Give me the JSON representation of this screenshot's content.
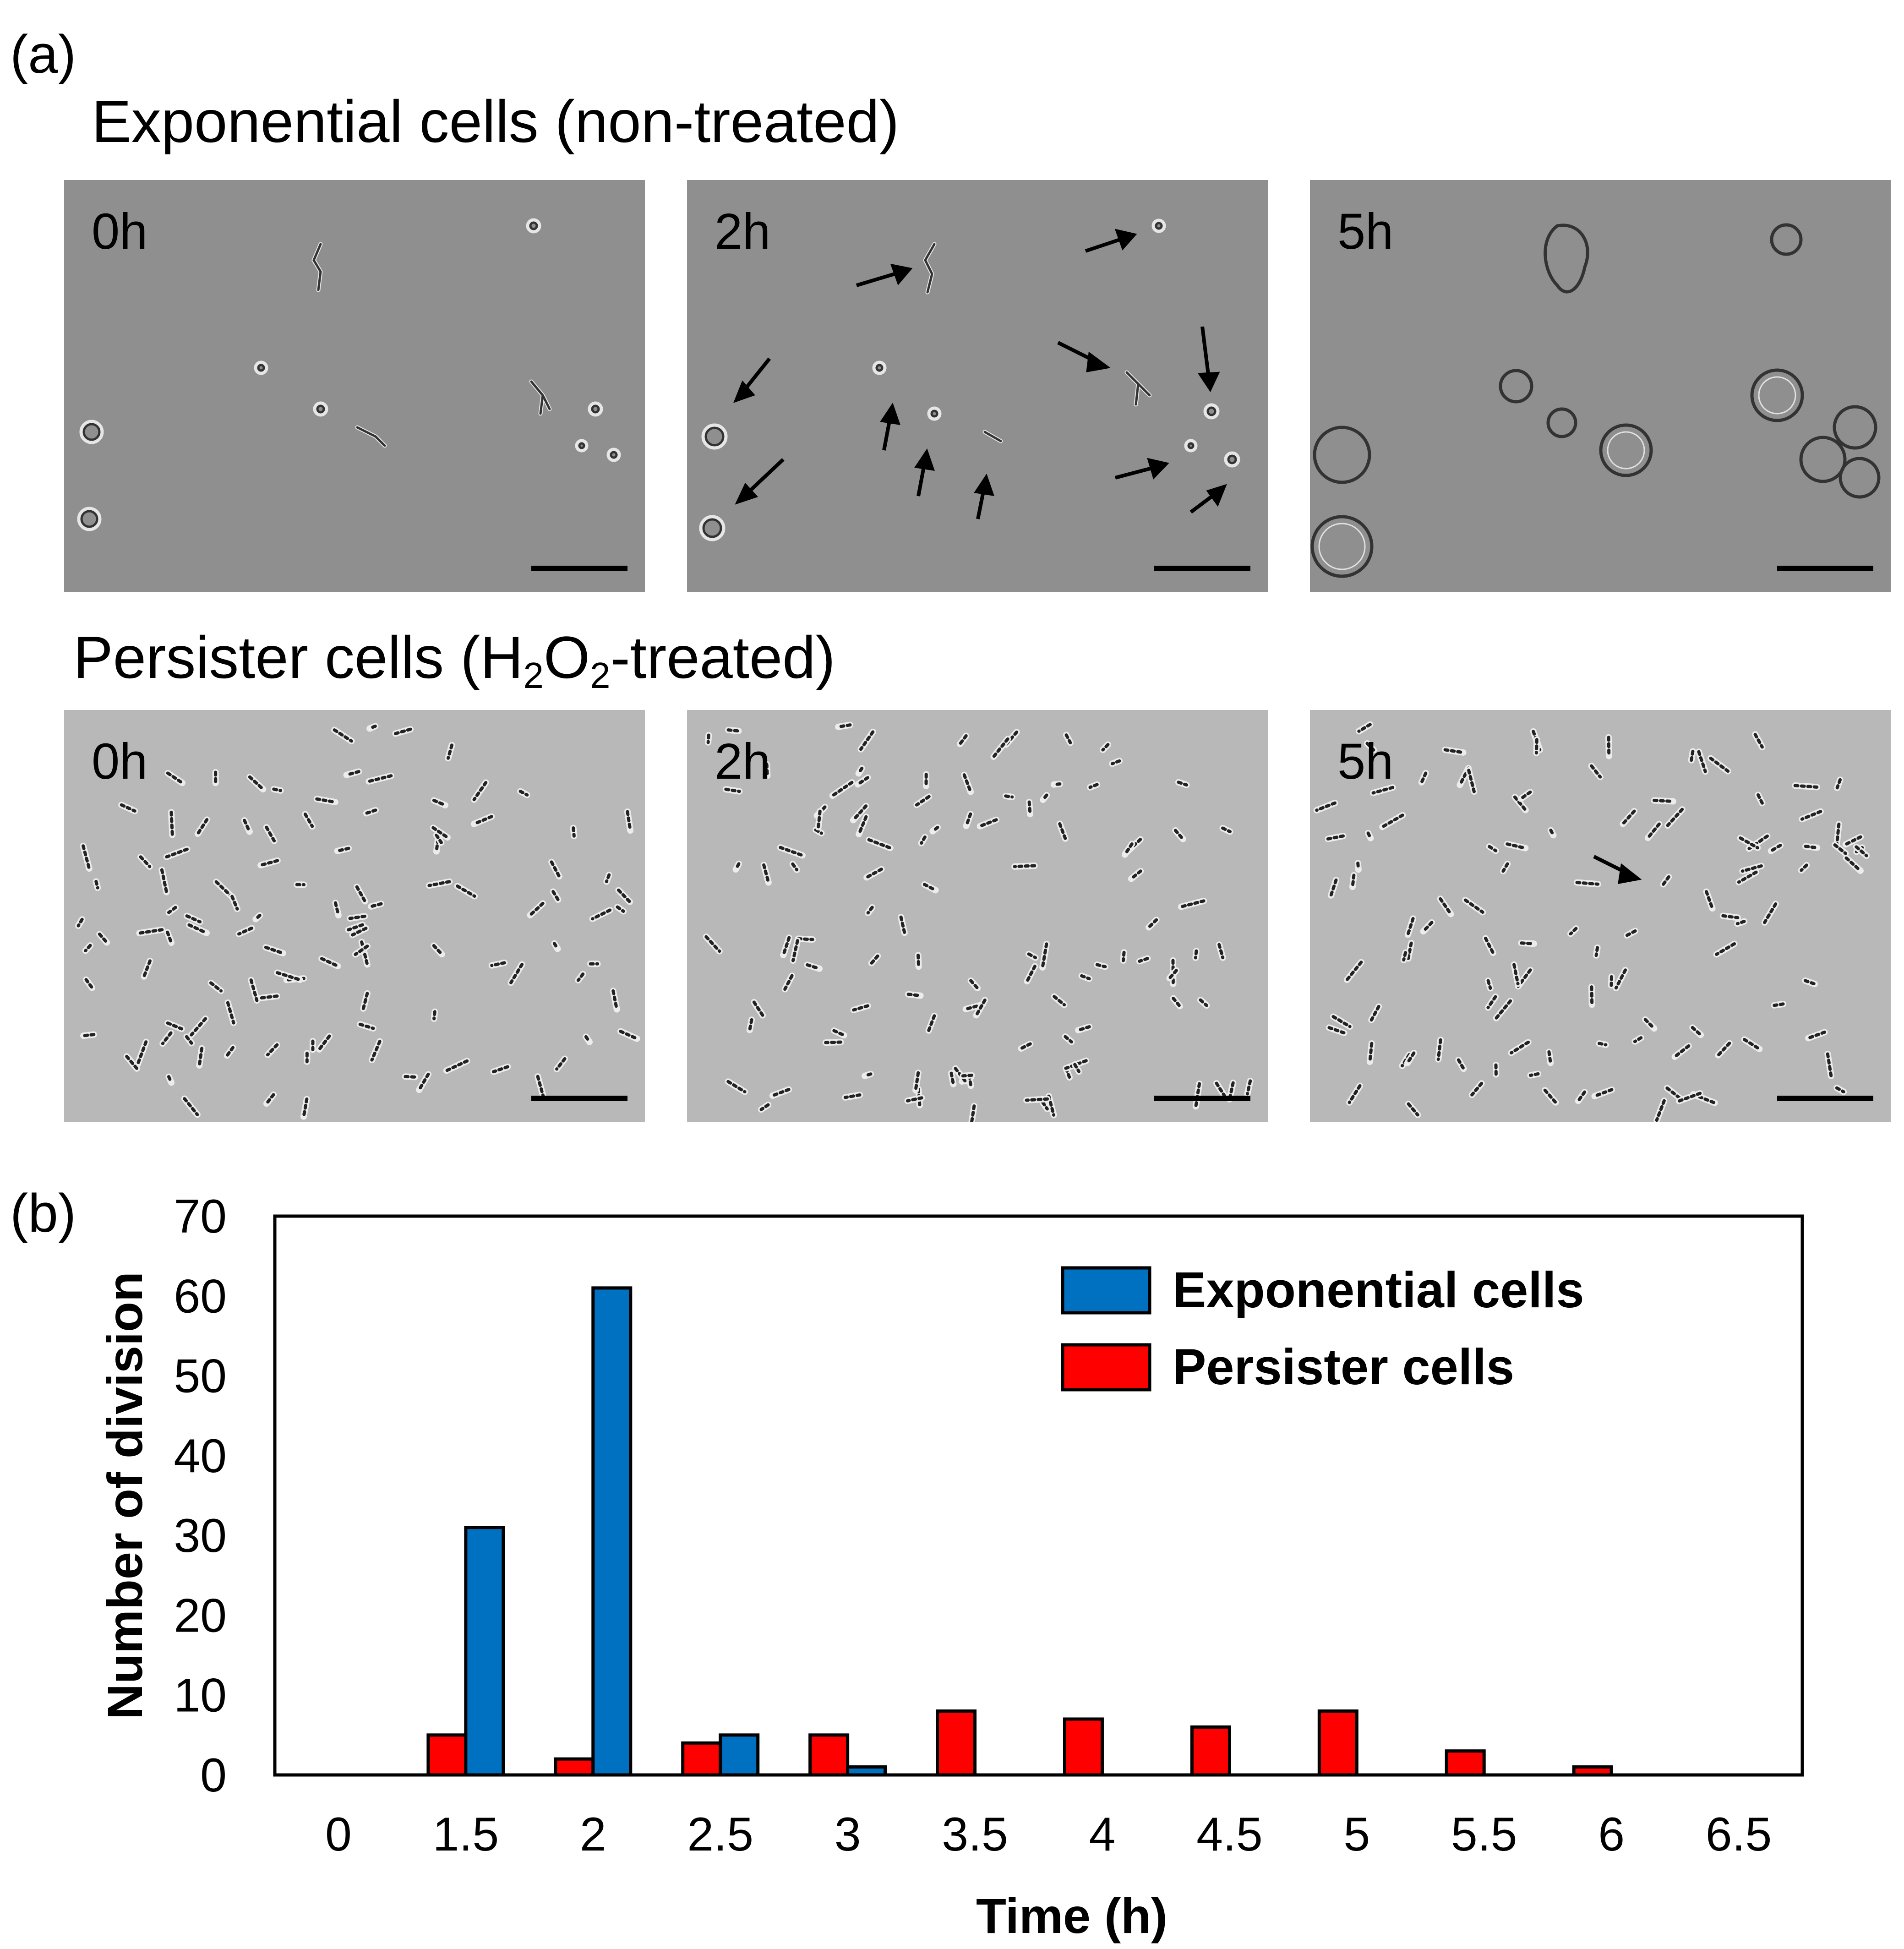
{
  "panel_a": {
    "letter": "(a)",
    "exp_title": "Exponential cells (non-treated)",
    "pers_title_prefix": "Persister cells (H",
    "pers_title_sub1": "2",
    "pers_title_mid": "O",
    "pers_title_sub2": "2",
    "pers_title_suffix": "-treated)",
    "time_labels": [
      "0h",
      "2h",
      "5h"
    ]
  },
  "panel_b": {
    "letter": "(b)"
  },
  "chart_data": {
    "type": "bar",
    "title": "",
    "xlabel": "Time (h)",
    "ylabel": "Number of division",
    "categories": [
      "0",
      "1.5",
      "2",
      "2.5",
      "3",
      "3.5",
      "4",
      "4.5",
      "5",
      "5.5",
      "6",
      "6.5"
    ],
    "series": [
      {
        "name": "Persister cells",
        "color": "#ff0000",
        "values": [
          0,
          5,
          2,
          4,
          5,
          8,
          7,
          6,
          8,
          3,
          1,
          0
        ]
      },
      {
        "name": "Exponential cells",
        "color": "#0070c0",
        "values": [
          0,
          31,
          61,
          5,
          1,
          0,
          0,
          0,
          0,
          0,
          0,
          0
        ]
      }
    ],
    "legend_order": [
      "Exponential cells",
      "Persister cells"
    ],
    "legend_position": "top-right",
    "ylim": [
      0,
      70
    ],
    "yticks": [
      0,
      10,
      20,
      30,
      40,
      50,
      60,
      70
    ],
    "grid": false
  }
}
